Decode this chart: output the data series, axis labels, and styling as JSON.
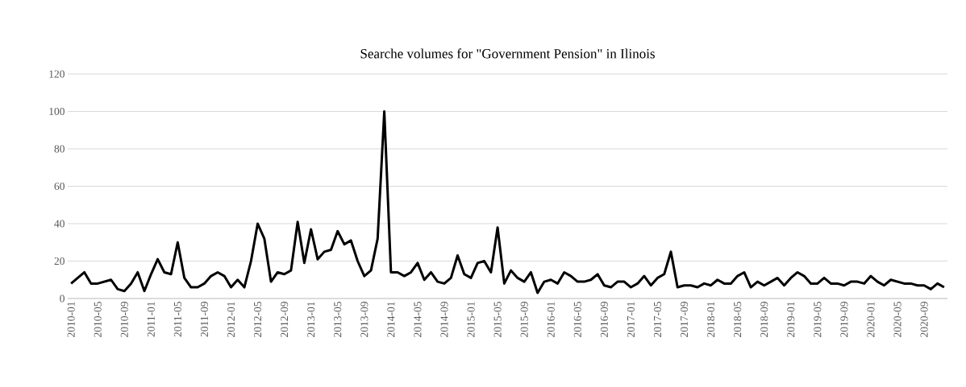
{
  "chart_data": {
    "type": "line",
    "title": "Searche volumes for \"Government Pension\" in Ilinois",
    "categories": [
      "2010-01",
      null,
      null,
      null,
      "2010-05",
      null,
      null,
      null,
      "2010-09",
      null,
      null,
      null,
      "2011-01",
      null,
      null,
      null,
      "2011-05",
      null,
      null,
      null,
      "2011-09",
      null,
      null,
      null,
      "2012-01",
      null,
      null,
      null,
      "2012-05",
      null,
      null,
      null,
      "2012-09",
      null,
      null,
      null,
      "2013-01",
      null,
      null,
      null,
      "2013-05",
      null,
      null,
      null,
      "2013-09",
      null,
      null,
      null,
      "2014-01",
      null,
      null,
      null,
      "2014-05",
      null,
      null,
      null,
      "2014-09",
      null,
      null,
      null,
      "2015-01",
      null,
      null,
      null,
      "2015-05",
      null,
      null,
      null,
      "2015-09",
      null,
      null,
      null,
      "2016-01",
      null,
      null,
      null,
      "2016-05",
      null,
      null,
      null,
      "2016-09",
      null,
      null,
      null,
      "2017-01",
      null,
      null,
      null,
      "2017-05",
      null,
      null,
      null,
      "2017-09",
      null,
      null,
      null,
      "2018-01",
      null,
      null,
      null,
      "2018-05",
      null,
      null,
      null,
      "2018-09",
      null,
      null,
      null,
      "2019-01",
      null,
      null,
      null,
      "2019-05",
      null,
      null,
      null,
      "2019-09",
      null,
      null,
      null,
      "2020-01",
      null,
      null,
      null,
      "2020-05",
      null,
      null,
      null,
      "2020-09",
      null,
      null,
      null
    ],
    "values": [
      8,
      11,
      14,
      8,
      8,
      9,
      10,
      5,
      4,
      8,
      14,
      4,
      13,
      21,
      14,
      13,
      30,
      11,
      6,
      6,
      8,
      12,
      14,
      12,
      6,
      10,
      6,
      20,
      40,
      32,
      9,
      14,
      13,
      15,
      41,
      19,
      37,
      21,
      25,
      26,
      36,
      29,
      31,
      20,
      12,
      15,
      32,
      100,
      14,
      14,
      12,
      14,
      19,
      10,
      14,
      9,
      8,
      11,
      23,
      13,
      11,
      19,
      20,
      14,
      38,
      8,
      15,
      11,
      9,
      14,
      3,
      9,
      10,
      8,
      14,
      12,
      9,
      9,
      10,
      13,
      7,
      6,
      9,
      9,
      6,
      8,
      12,
      7,
      11,
      13,
      25,
      6,
      7,
      7,
      6,
      8,
      7,
      10,
      8,
      8,
      12,
      14,
      6,
      9,
      7,
      9,
      11,
      7,
      11,
      14,
      12,
      8,
      8,
      11,
      8,
      8,
      7,
      9,
      9,
      8,
      12,
      9,
      7,
      10,
      9,
      8,
      8,
      7,
      7,
      5,
      8,
      6
    ],
    "color": "#000000",
    "line_style": "solid",
    "ylim": [
      0,
      120
    ],
    "yticks": [
      0,
      20,
      40,
      60,
      80,
      100,
      120
    ],
    "grid": "y"
  }
}
